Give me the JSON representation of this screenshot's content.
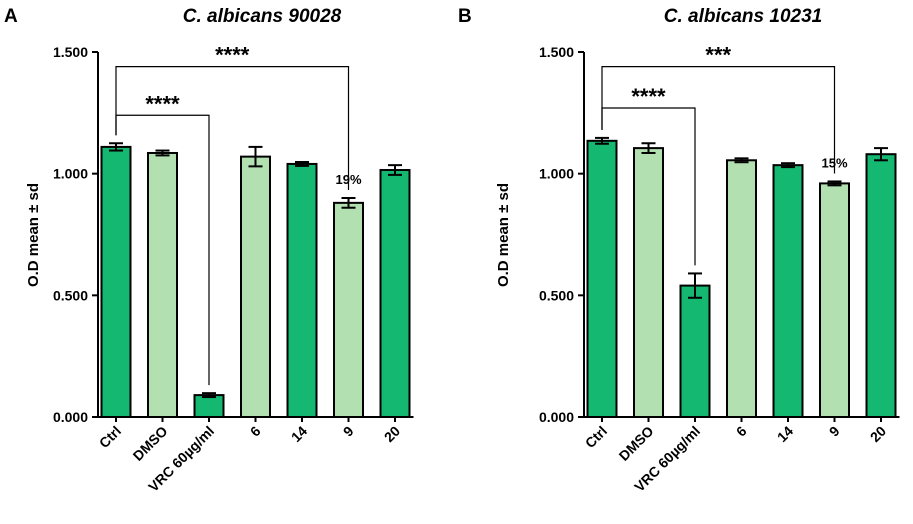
{
  "chart_data": [
    {
      "type": "bar",
      "panel": "A",
      "title": "C. albicans 90028",
      "xlabel": "",
      "ylabel": "O.D mean ± sd",
      "ylim": [
        0,
        1.5
      ],
      "yticks": [
        "0.000",
        "0.500",
        "1.000",
        "1.500"
      ],
      "categories": [
        "Ctrl",
        "DMSO",
        "VRC 60µg/ml",
        "6",
        "14",
        "9",
        "20"
      ],
      "values": [
        1.11,
        1.085,
        0.09,
        1.07,
        1.04,
        0.88,
        1.015
      ],
      "errors": [
        0.015,
        0.01,
        0.008,
        0.04,
        0.008,
        0.02,
        0.02
      ],
      "bar_colors": [
        "#14b871",
        "#b2e0b0",
        "#14b871",
        "#b2e0b0",
        "#14b871",
        "#b2e0b0",
        "#14b871"
      ],
      "significance": [
        {
          "from": 0,
          "to": 2,
          "label": "****",
          "line_y": 1.24
        },
        {
          "from": 0,
          "to": 5,
          "label": "****",
          "line_y": 1.44
        }
      ],
      "annotations": [
        {
          "category": 5,
          "text": "19%"
        }
      ]
    },
    {
      "type": "bar",
      "panel": "B",
      "title": "C. albicans 10231",
      "xlabel": "",
      "ylabel": "O.D mean ± sd",
      "ylim": [
        0,
        1.5
      ],
      "yticks": [
        "0.000",
        "0.500",
        "1.000",
        "1.500"
      ],
      "categories": [
        "Ctrl",
        "DMSO",
        "VRC 60µg/ml",
        "6",
        "14",
        "9",
        "20"
      ],
      "values": [
        1.135,
        1.105,
        0.54,
        1.055,
        1.035,
        0.96,
        1.08
      ],
      "errors": [
        0.012,
        0.02,
        0.05,
        0.008,
        0.008,
        0.008,
        0.025
      ],
      "bar_colors": [
        "#14b871",
        "#b2e0b0",
        "#14b871",
        "#b2e0b0",
        "#14b871",
        "#b2e0b0",
        "#14b871"
      ],
      "significance": [
        {
          "from": 0,
          "to": 2,
          "label": "****",
          "line_y": 1.27
        },
        {
          "from": 0,
          "to": 5,
          "label": "***",
          "line_y": 1.44
        }
      ],
      "annotations": [
        {
          "category": 5,
          "text": "15%"
        }
      ]
    }
  ]
}
